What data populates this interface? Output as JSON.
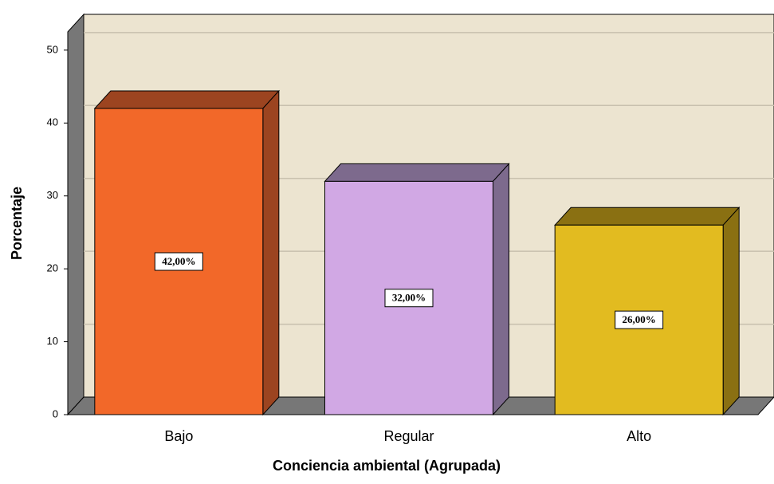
{
  "chart_data": {
    "type": "bar3d",
    "x_label": "Conciencia ambiental (Agrupada)",
    "y_label": "Porcentaje",
    "categories": [
      "Bajo",
      "Regular",
      "Alto"
    ],
    "values": [
      42,
      32,
      26
    ],
    "value_labels": [
      "42,00%",
      "32,00%",
      "26,00%"
    ],
    "colors": [
      "#f26829",
      "#d1a8e4",
      "#e2bb20"
    ],
    "side_colors": [
      "#9c4420",
      "#7d6a8d",
      "#8a7012"
    ],
    "ylim": [
      0,
      52.5
    ],
    "yticks": [
      0,
      10,
      20,
      30,
      40,
      50
    ],
    "grid": true
  }
}
